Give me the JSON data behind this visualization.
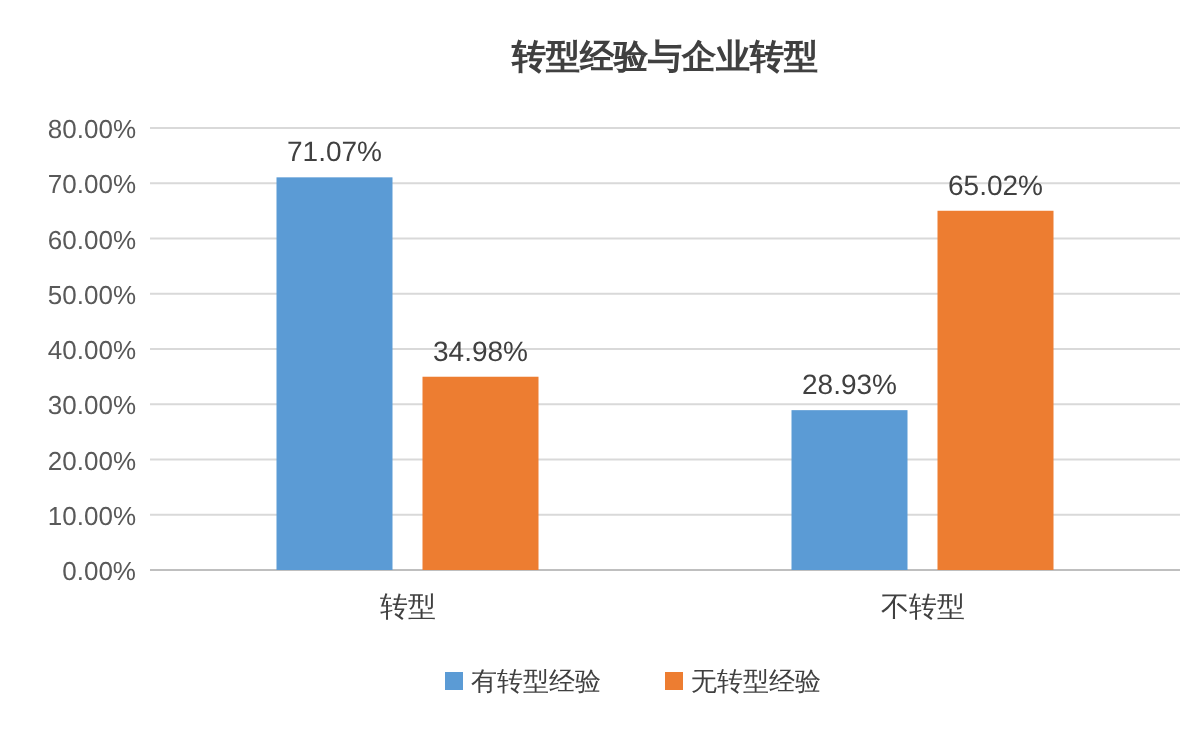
{
  "chart_data": {
    "type": "bar",
    "title": "转型经验与企业转型",
    "categories": [
      "转型",
      "不转型"
    ],
    "series": [
      {
        "name": "有转型经验",
        "color": "#5b9bd5",
        "values": [
          71.07,
          28.93
        ],
        "value_labels": [
          "71.07%",
          "28.93%"
        ]
      },
      {
        "name": "无转型经验",
        "color": "#ed7d31",
        "values": [
          34.98,
          65.02
        ],
        "value_labels": [
          "34.98%",
          "65.02%"
        ]
      }
    ],
    "ylim": [
      0,
      80
    ],
    "yticks": [
      {
        "value": 0,
        "label": "0.00%"
      },
      {
        "value": 10,
        "label": "10.00%"
      },
      {
        "value": 20,
        "label": "20.00%"
      },
      {
        "value": 30,
        "label": "30.00%"
      },
      {
        "value": 40,
        "label": "40.00%"
      },
      {
        "value": 50,
        "label": "50.00%"
      },
      {
        "value": 60,
        "label": "60.00%"
      },
      {
        "value": 70,
        "label": "70.00%"
      },
      {
        "value": 80,
        "label": "80.00%"
      }
    ],
    "grid": "y",
    "legend": "bottom"
  }
}
